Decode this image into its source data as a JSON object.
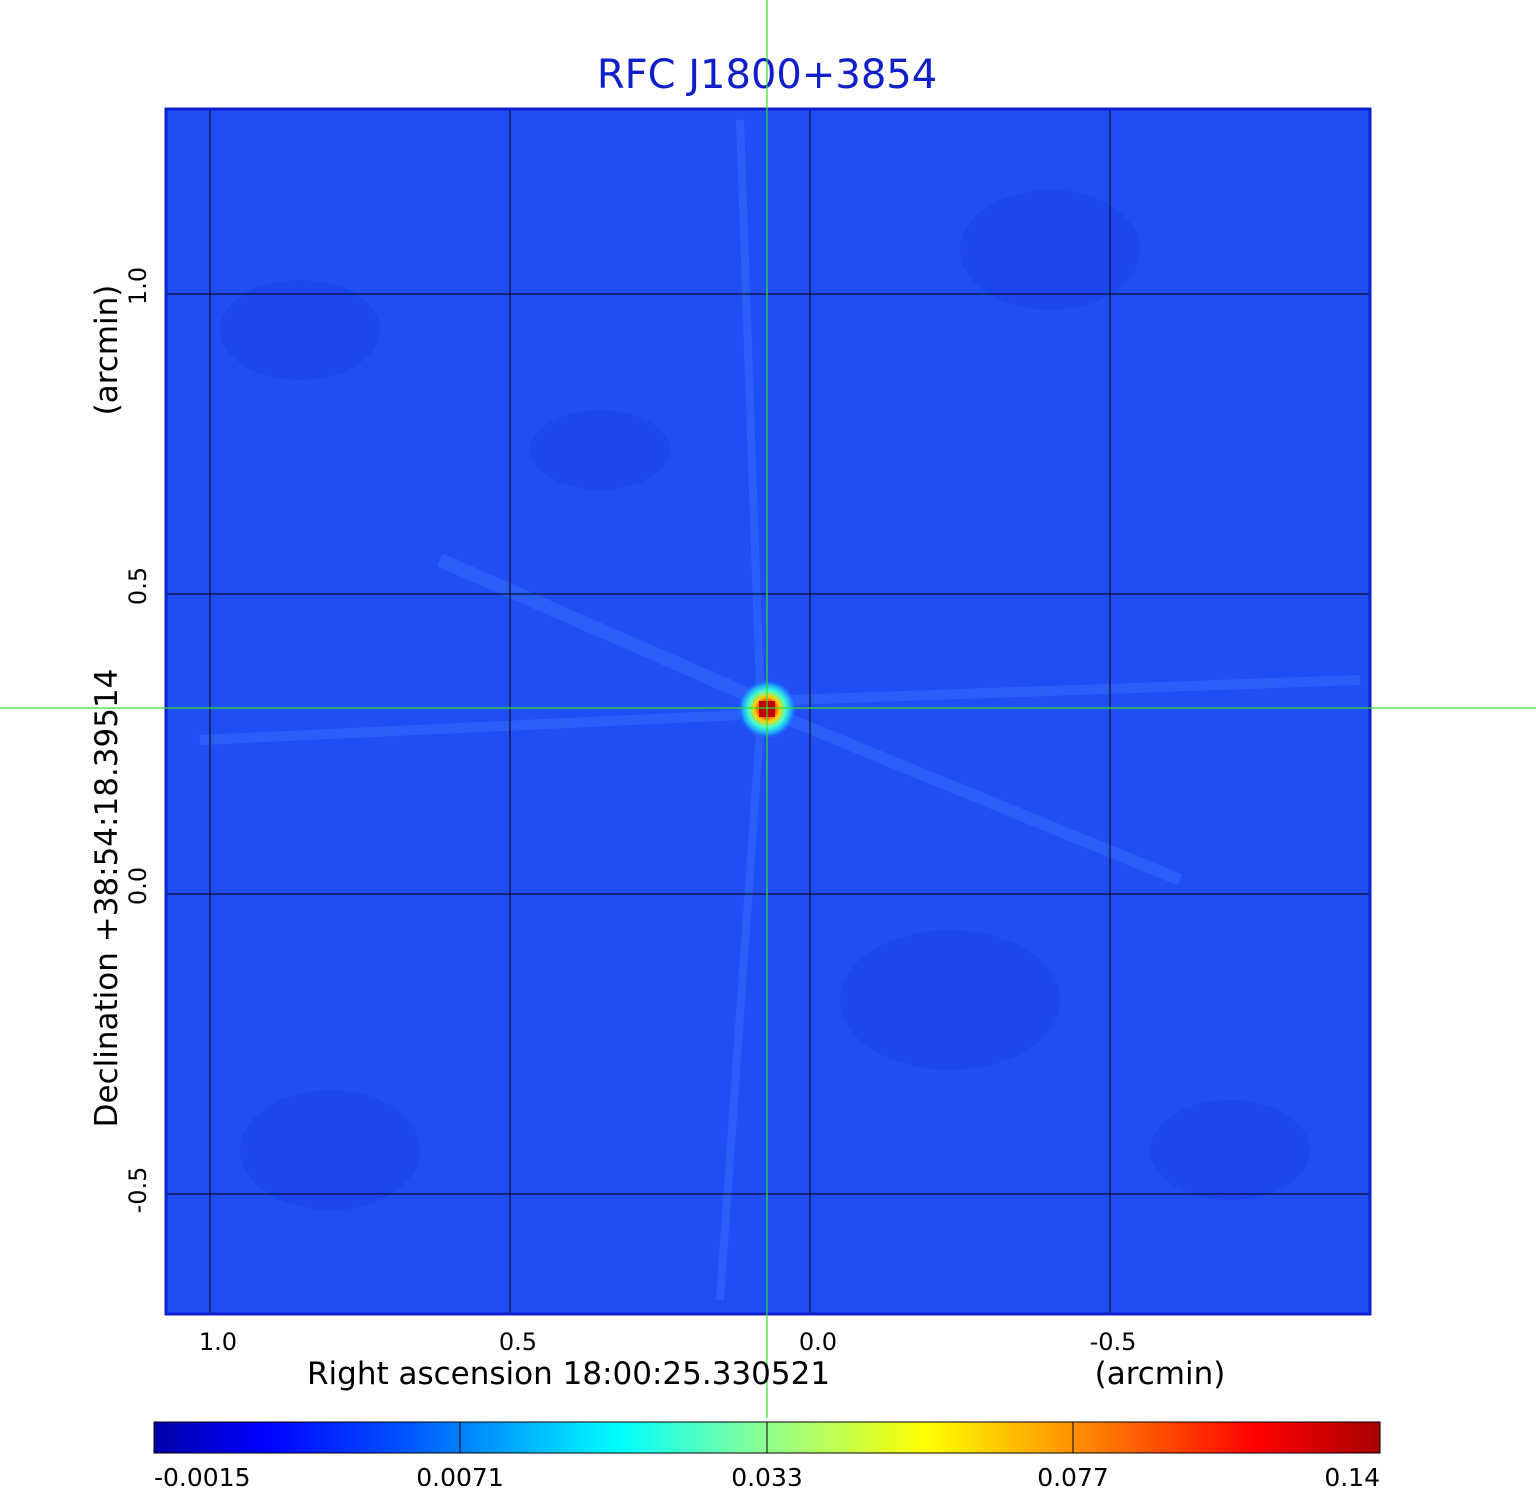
{
  "title": "RFC J1800+3854",
  "x_axis": {
    "label": "Right ascension  18:00:25.330521",
    "unit": "(arcmin)",
    "ticks": [
      "1.0",
      "0.5",
      "0.0",
      "-0.5"
    ]
  },
  "y_axis": {
    "label": "Declination  +38:54:18.39514",
    "unit": "(arcmin)",
    "ticks": [
      "1.0",
      "0.5",
      "0.0",
      "-0.5"
    ]
  },
  "colorbar": {
    "ticks": [
      "-0.0015",
      "0.0071",
      "0.033",
      "0.077",
      "0.14"
    ],
    "colors": [
      "#0000a8",
      "#0000ff",
      "#00a0ff",
      "#00ffff",
      "#90ff90",
      "#ffff00",
      "#ff9000",
      "#ff0000",
      "#a80000"
    ]
  },
  "colors": {
    "title": "#1020c8",
    "background_map": "#1f4ef5",
    "crosshair": "#33dd33",
    "grid": "#000000",
    "frame": "#1020d0"
  }
}
